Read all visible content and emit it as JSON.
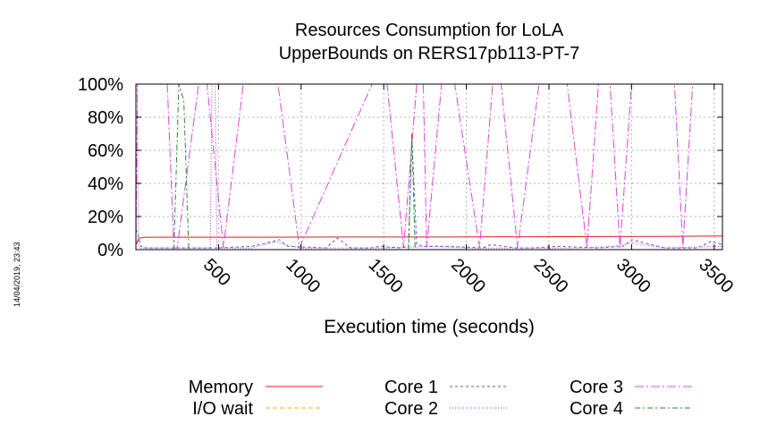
{
  "chart_data": {
    "type": "line",
    "title": [
      "Resources Consumption for LoLA",
      "UpperBounds on RERS17pb113-PT-7"
    ],
    "xlabel": "Execution time (seconds)",
    "ylabel": "",
    "xlim": [
      0,
      3550
    ],
    "ylim": [
      0,
      100
    ],
    "xticks": [
      500,
      1000,
      1500,
      2000,
      2500,
      3000,
      3500
    ],
    "xtick_labels": [
      "500",
      "1000",
      "1500",
      "2000",
      "2500",
      "3000",
      "3500"
    ],
    "yticks": [
      0,
      20,
      40,
      60,
      80,
      100
    ],
    "ytick_labels": [
      "0%",
      "20%",
      "40%",
      "60%",
      "80%",
      "100%"
    ],
    "grid": true,
    "legend_position": "bottom",
    "timestamp": "14/04/2019, 23:43",
    "series": [
      {
        "name": "Memory",
        "color": "#e41a1c",
        "dash": "",
        "x": [
          0,
          20,
          60,
          120,
          400,
          800,
          1200,
          1600,
          2000,
          2400,
          2800,
          3200,
          3550
        ],
        "y": [
          3,
          7,
          7.5,
          7.5,
          7.5,
          7.5,
          7.6,
          7.6,
          7.7,
          7.8,
          7.9,
          8,
          8.2
        ]
      },
      {
        "name": "I/O wait",
        "color": "#f0b000",
        "dash": "5,3",
        "x": [
          0,
          3550
        ],
        "y": [
          0,
          0
        ]
      },
      {
        "name": "Core 1",
        "color": "#5555cc",
        "dash": "3,3",
        "x": [
          0,
          10,
          30,
          60,
          120,
          250,
          500,
          700,
          870,
          920,
          1150,
          1220,
          1300,
          1420,
          1480,
          1600,
          1650,
          1670,
          1700,
          1750,
          1900,
          2100,
          2150,
          2300,
          2400,
          2550,
          2800,
          2950,
          3000,
          3200,
          3400,
          3480,
          3550
        ],
        "y": [
          12,
          10,
          2,
          1,
          1,
          1,
          1,
          2,
          6,
          2,
          1,
          7,
          1,
          1,
          2,
          1,
          2,
          68,
          3,
          2,
          2,
          1,
          3,
          1,
          1,
          2,
          1,
          2,
          6,
          1,
          1,
          5,
          3
        ]
      },
      {
        "name": "Core 2",
        "color": "#9b30d9",
        "dash": "1,2",
        "x": [
          0,
          8,
          15,
          30,
          100,
          200,
          300,
          350,
          400,
          450,
          460,
          480,
          490,
          500,
          700,
          850,
          900,
          1000,
          1200,
          1500,
          1800,
          2000,
          2200,
          2500,
          2700,
          2900,
          3000,
          3200,
          3550
        ],
        "y": [
          100,
          100,
          2,
          1,
          1,
          1,
          1,
          1,
          1,
          1,
          100,
          100,
          1,
          1,
          1,
          5,
          3,
          1,
          1,
          1,
          2,
          1,
          1,
          1,
          1,
          2,
          4,
          1,
          2
        ]
      },
      {
        "name": "Core 3",
        "color": "#e040e0",
        "dash": "10,3,2,3",
        "x": [
          0,
          10,
          40,
          190,
          230,
          250,
          380,
          430,
          530,
          650,
          860,
          990,
          1430,
          1520,
          1620,
          1700,
          1740,
          1760,
          1850,
          1930,
          2080,
          2160,
          2210,
          2310,
          2440,
          2610,
          2730,
          2800,
          2870,
          2930,
          3000,
          3160,
          3260,
          3310,
          3370,
          3550
        ],
        "y": [
          1,
          100,
          100,
          100,
          1,
          1,
          100,
          100,
          1,
          100,
          100,
          1,
          100,
          100,
          1,
          100,
          100,
          1,
          100,
          100,
          1,
          100,
          100,
          1,
          100,
          100,
          1,
          100,
          100,
          1,
          100,
          100,
          100,
          1,
          100,
          100
        ]
      },
      {
        "name": "Core 4",
        "color": "#228b22",
        "dash": "6,3,2,3",
        "x": [
          0,
          230,
          260,
          290,
          320,
          400,
          1650,
          1670,
          1690,
          1750,
          3550
        ],
        "y": [
          0,
          0,
          100,
          90,
          0,
          0,
          0,
          70,
          0,
          0,
          0
        ]
      }
    ]
  }
}
